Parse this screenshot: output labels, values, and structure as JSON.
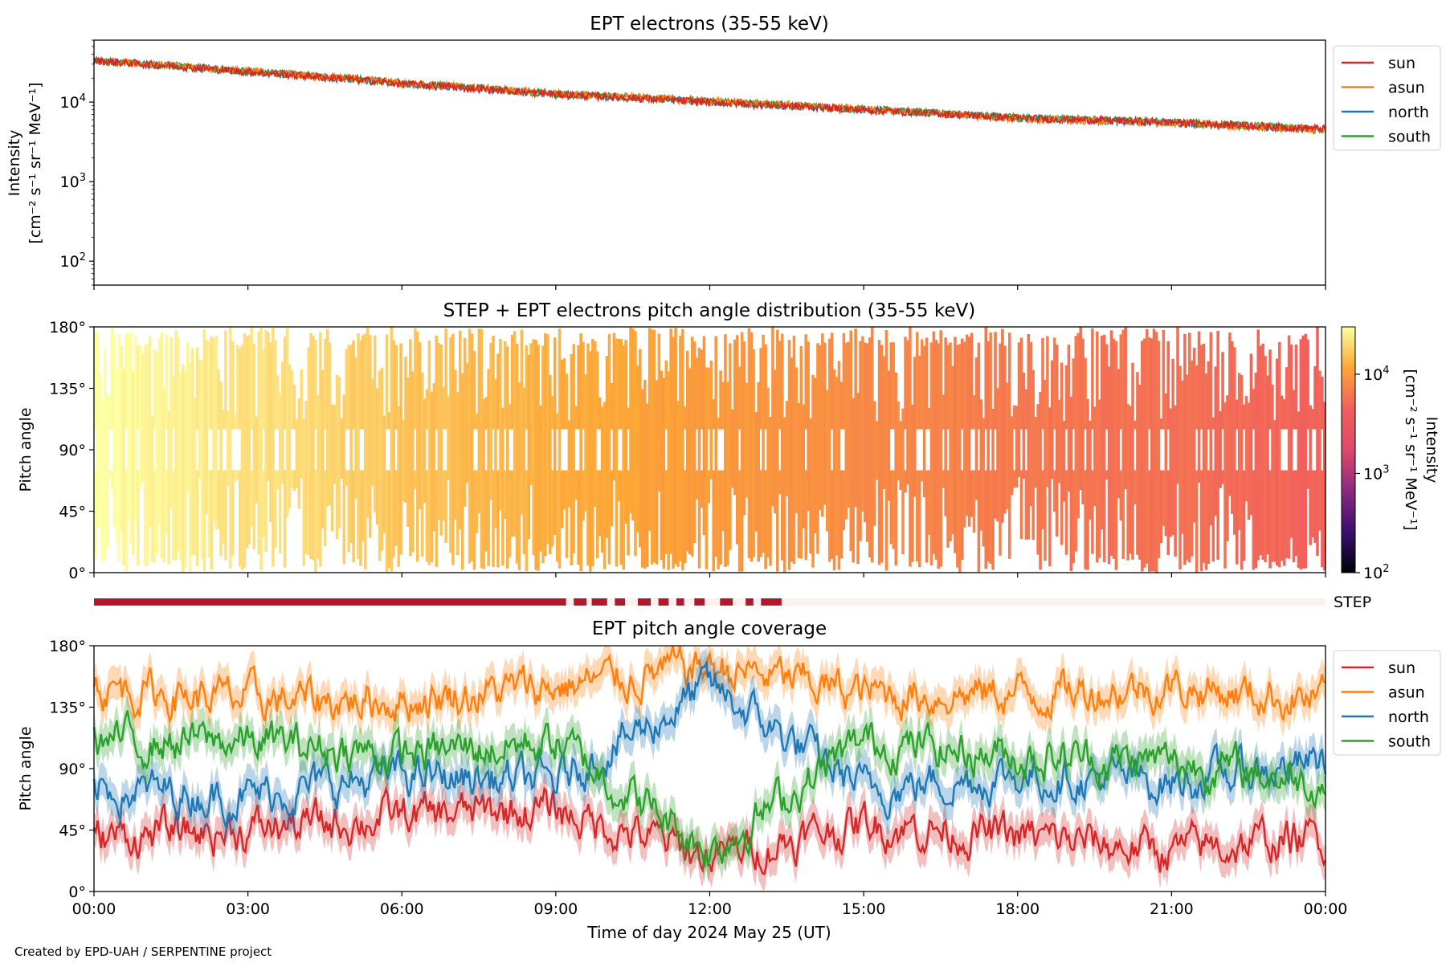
{
  "footer": {
    "credit": "Created by EPD-UAH / SERPENTINE project"
  },
  "xaxis": {
    "label": "Time of day 2024 May 25 (UT)",
    "ticks": [
      "00:00",
      "03:00",
      "06:00",
      "09:00",
      "12:00",
      "15:00",
      "18:00",
      "21:00",
      "00:00"
    ],
    "range_hours": [
      0,
      24
    ]
  },
  "colors": {
    "sun": "#d62728",
    "asun": "#ff7f0e",
    "north": "#1f77b4",
    "south": "#2ca02c",
    "step_bar": "#b2182b",
    "step_bar_off": "#fdf0ef"
  },
  "chart_data": [
    {
      "type": "line",
      "title": "EPT electrons (35-55 keV)",
      "ylabel": "Intensity",
      "ylabel_units": "[cm⁻² s⁻¹ sr⁻¹ MeV⁻¹]",
      "yscale": "log",
      "ylim": [
        50,
        60000
      ],
      "ytick_labels": [
        {
          "base": "10",
          "exp": "2",
          "value": 100
        },
        {
          "base": "10",
          "exp": "3",
          "value": 1000
        },
        {
          "base": "10",
          "exp": "4",
          "value": 10000
        }
      ],
      "legend": {
        "position": "upper right outside",
        "entries": [
          "sun",
          "asun",
          "north",
          "south"
        ]
      },
      "x_hours": [
        0,
        3,
        6,
        9,
        12,
        15,
        18,
        21,
        24
      ],
      "series": [
        {
          "name": "sun",
          "values": [
            33000,
            24000,
            17000,
            12500,
            10000,
            8000,
            6300,
            5600,
            4600
          ]
        },
        {
          "name": "asun",
          "values": [
            33500,
            24500,
            17500,
            12800,
            10300,
            8200,
            6200,
            5500,
            4400
          ]
        },
        {
          "name": "north",
          "values": [
            33200,
            24200,
            17200,
            12600,
            10100,
            8100,
            6300,
            5500,
            4500
          ]
        },
        {
          "name": "south",
          "values": [
            33100,
            24300,
            17300,
            12700,
            10200,
            8100,
            6400,
            5600,
            4500
          ]
        }
      ]
    },
    {
      "type": "heatmap",
      "title": "STEP + EPT electrons pitch angle distribution (35-55 keV)",
      "ylabel": "Pitch angle",
      "ylim": [
        0,
        180
      ],
      "ytick_labels": [
        "0°",
        "45°",
        "90°",
        "135°",
        "180°"
      ],
      "colorbar": {
        "label": "Intensity",
        "units": "[cm⁻² s⁻¹ sr⁻¹ MeV⁻¹]",
        "scale": "log",
        "range": [
          100,
          30000
        ],
        "tick_labels": [
          {
            "base": "10",
            "exp": "2",
            "value": 100
          },
          {
            "base": "10",
            "exp": "3",
            "value": 1000
          },
          {
            "base": "10",
            "exp": "4",
            "value": 10000
          }
        ],
        "colormap_stops": [
          "#000004",
          "#3b0f70",
          "#8c2981",
          "#de4968",
          "#f1605d",
          "#fca636",
          "#fcffa4"
        ]
      },
      "x_hours": [
        0,
        3,
        6,
        9,
        12,
        15,
        18,
        21,
        24
      ],
      "intensity_level": [
        30000,
        22000,
        16000,
        12500,
        10000,
        8000,
        6300,
        5600,
        4600
      ]
    },
    {
      "type": "bar",
      "label": "STEP",
      "description_segments_hours": [
        [
          0,
          9.2
        ],
        [
          9.35,
          9.6
        ],
        [
          9.7,
          10.0
        ],
        [
          10.15,
          10.35
        ],
        [
          10.6,
          10.85
        ],
        [
          11.0,
          11.2
        ],
        [
          11.35,
          11.5
        ],
        [
          11.7,
          11.9
        ],
        [
          12.2,
          12.45
        ],
        [
          12.7,
          12.85
        ],
        [
          13.0,
          13.4
        ]
      ]
    },
    {
      "type": "line",
      "title": "EPT pitch angle coverage",
      "ylabel": "Pitch angle",
      "ylim": [
        0,
        180
      ],
      "ytick_labels": [
        "0°",
        "45°",
        "90°",
        "135°",
        "180°"
      ],
      "legend": {
        "position": "upper right outside",
        "entries": [
          "sun",
          "asun",
          "north",
          "south"
        ]
      },
      "x_hours": [
        0,
        3,
        6,
        9,
        12,
        15,
        18,
        21,
        24
      ],
      "series": [
        {
          "name": "sun",
          "values": [
            40,
            45,
            55,
            60,
            25,
            50,
            40,
            30,
            40
          ]
        },
        {
          "name": "asun",
          "values": [
            150,
            140,
            140,
            150,
            165,
            145,
            145,
            150,
            140
          ]
        },
        {
          "name": "north",
          "values": [
            75,
            70,
            85,
            80,
            150,
            75,
            85,
            80,
            95
          ]
        },
        {
          "name": "south",
          "values": [
            110,
            110,
            100,
            110,
            30,
            110,
            100,
            95,
            80
          ]
        }
      ]
    }
  ]
}
